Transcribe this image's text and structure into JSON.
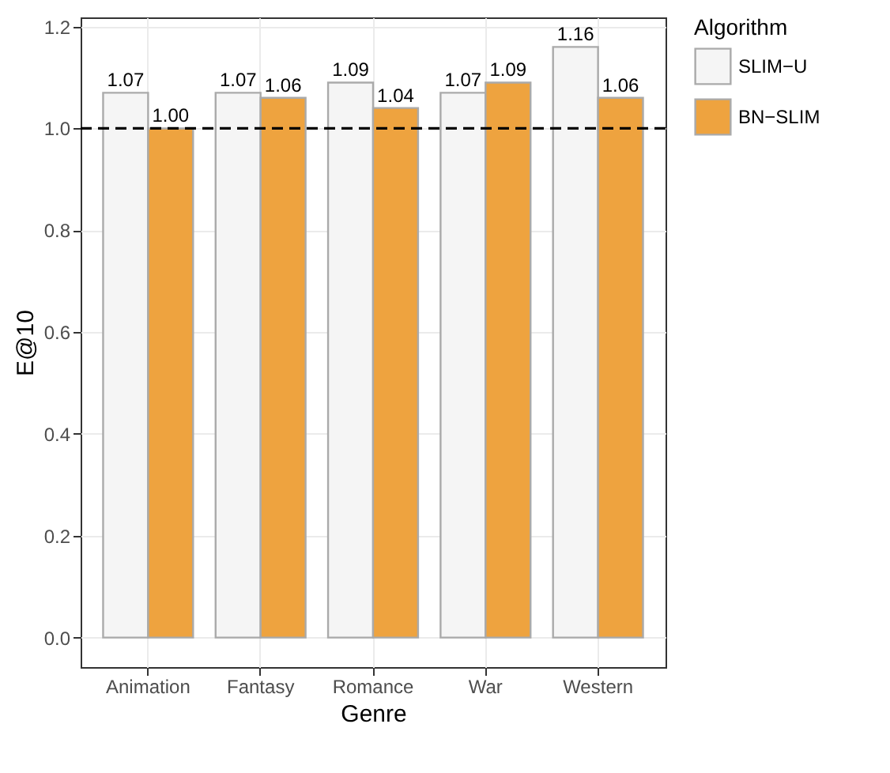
{
  "chart_data": {
    "type": "bar",
    "xlabel": "Genre",
    "ylabel": "E@10",
    "legend_title": "Algorithm",
    "categories": [
      "Animation",
      "Fantasy",
      "Romance",
      "War",
      "Western"
    ],
    "series": [
      {
        "name": "SLIM−U",
        "color": "#f5f5f5",
        "values": [
          1.07,
          1.07,
          1.09,
          1.07,
          1.16
        ],
        "value_labels": [
          "1.07",
          "1.07",
          "1.09",
          "1.07",
          "1.16"
        ]
      },
      {
        "name": "BN−SLIM",
        "color": "#eea33f",
        "values": [
          1.0,
          1.06,
          1.04,
          1.09,
          1.06
        ],
        "value_labels": [
          "1.00",
          "1.06",
          "1.04",
          "1.09",
          "1.06"
        ]
      }
    ],
    "ylim": [
      -0.058,
      1.218
    ],
    "yticks": [
      {
        "value": 0,
        "label": "0.0"
      },
      {
        "value": 0.2,
        "label": "0.2"
      },
      {
        "value": 0.4,
        "label": "0.4"
      },
      {
        "value": 0.6,
        "label": "0.6"
      },
      {
        "value": 0.8,
        "label": "0.8"
      },
      {
        "value": 1,
        "label": "1.0"
      },
      {
        "value": 1.2,
        "label": "1.2"
      }
    ],
    "ref_lines": [
      {
        "axis": "y",
        "value": 1,
        "line_style": "dashed",
        "color": "#000000"
      }
    ],
    "grid": true,
    "legend": "right"
  }
}
